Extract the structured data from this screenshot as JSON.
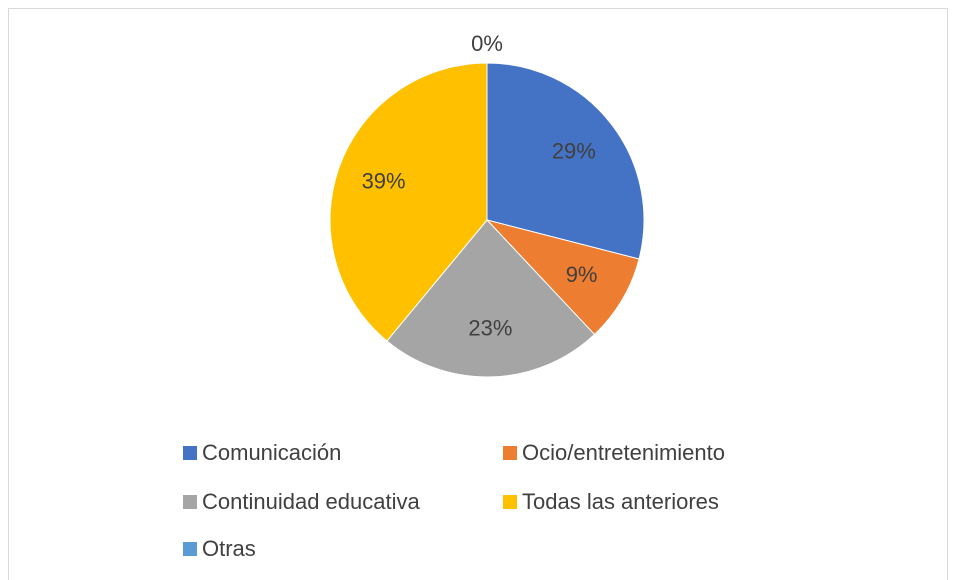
{
  "chart_data": {
    "type": "pie",
    "categories": [
      "Comunicación",
      "Ocio/entretenimiento",
      "Continuidad educativa",
      "Todas las anteriores",
      "Otras"
    ],
    "values": [
      29,
      9,
      23,
      39,
      0
    ],
    "value_labels": [
      "29%",
      "9%",
      "23%",
      "39%",
      "0%"
    ],
    "colors": [
      "#4472c4",
      "#ed7d31",
      "#a5a5a5",
      "#ffc000",
      "#5b9bd5"
    ],
    "legend": "bottom"
  }
}
